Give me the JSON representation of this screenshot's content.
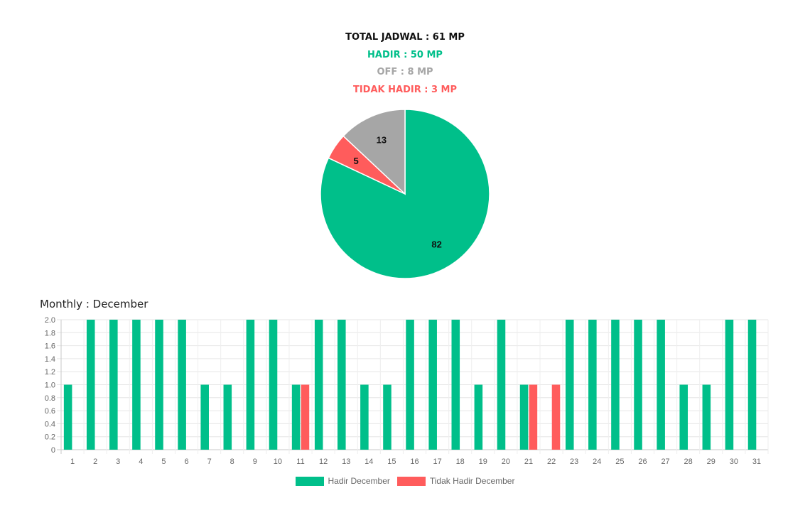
{
  "summary": {
    "total": {
      "label": "TOTAL JADWAL",
      "value": "61 MP",
      "color": "#111111"
    },
    "hadir": {
      "label": "HADIR",
      "value": "50 MP",
      "color": "#00bf8a"
    },
    "off": {
      "label": "OFF",
      "value": "8 MP",
      "color": "#a6a6a6"
    },
    "tidak": {
      "label": "TIDAK HADIR",
      "value": "3 MP",
      "color": "#ff5c5c"
    }
  },
  "monthly_title": "Monthly : December",
  "chart_data": [
    {
      "type": "pie",
      "slices": [
        {
          "value": 82,
          "label": "82",
          "color": "#00bf8a"
        },
        {
          "value": 5,
          "label": "5",
          "color": "#ff5c5c"
        },
        {
          "value": 13,
          "label": "13",
          "color": "#a6a6a6"
        }
      ]
    },
    {
      "type": "bar",
      "categories": [
        "1",
        "2",
        "3",
        "4",
        "5",
        "6",
        "7",
        "8",
        "9",
        "10",
        "11",
        "12",
        "13",
        "14",
        "15",
        "16",
        "17",
        "18",
        "19",
        "20",
        "21",
        "22",
        "23",
        "24",
        "25",
        "26",
        "27",
        "28",
        "29",
        "30",
        "31"
      ],
      "series": [
        {
          "name": "Hadir December",
          "color": "#00bf8a",
          "values": [
            1,
            2,
            2,
            2,
            2,
            2,
            1,
            1,
            2,
            2,
            1,
            2,
            2,
            1,
            1,
            2,
            2,
            2,
            1,
            2,
            1,
            0,
            2,
            2,
            2,
            2,
            2,
            1,
            1,
            2,
            2
          ]
        },
        {
          "name": "Tidak Hadir December",
          "color": "#ff5c5c",
          "values": [
            0,
            0,
            0,
            0,
            0,
            0,
            0,
            0,
            0,
            0,
            1,
            0,
            0,
            0,
            0,
            0,
            0,
            0,
            0,
            0,
            1,
            1,
            0,
            0,
            0,
            0,
            0,
            0,
            0,
            0,
            0
          ]
        }
      ],
      "ylim": [
        0,
        2.0
      ],
      "yticks": [
        "0",
        "0.2",
        "0.4",
        "0.6",
        "0.8",
        "1.0",
        "1.2",
        "1.4",
        "1.6",
        "1.8",
        "2.0"
      ],
      "grid": true,
      "legend": "bottom"
    }
  ]
}
